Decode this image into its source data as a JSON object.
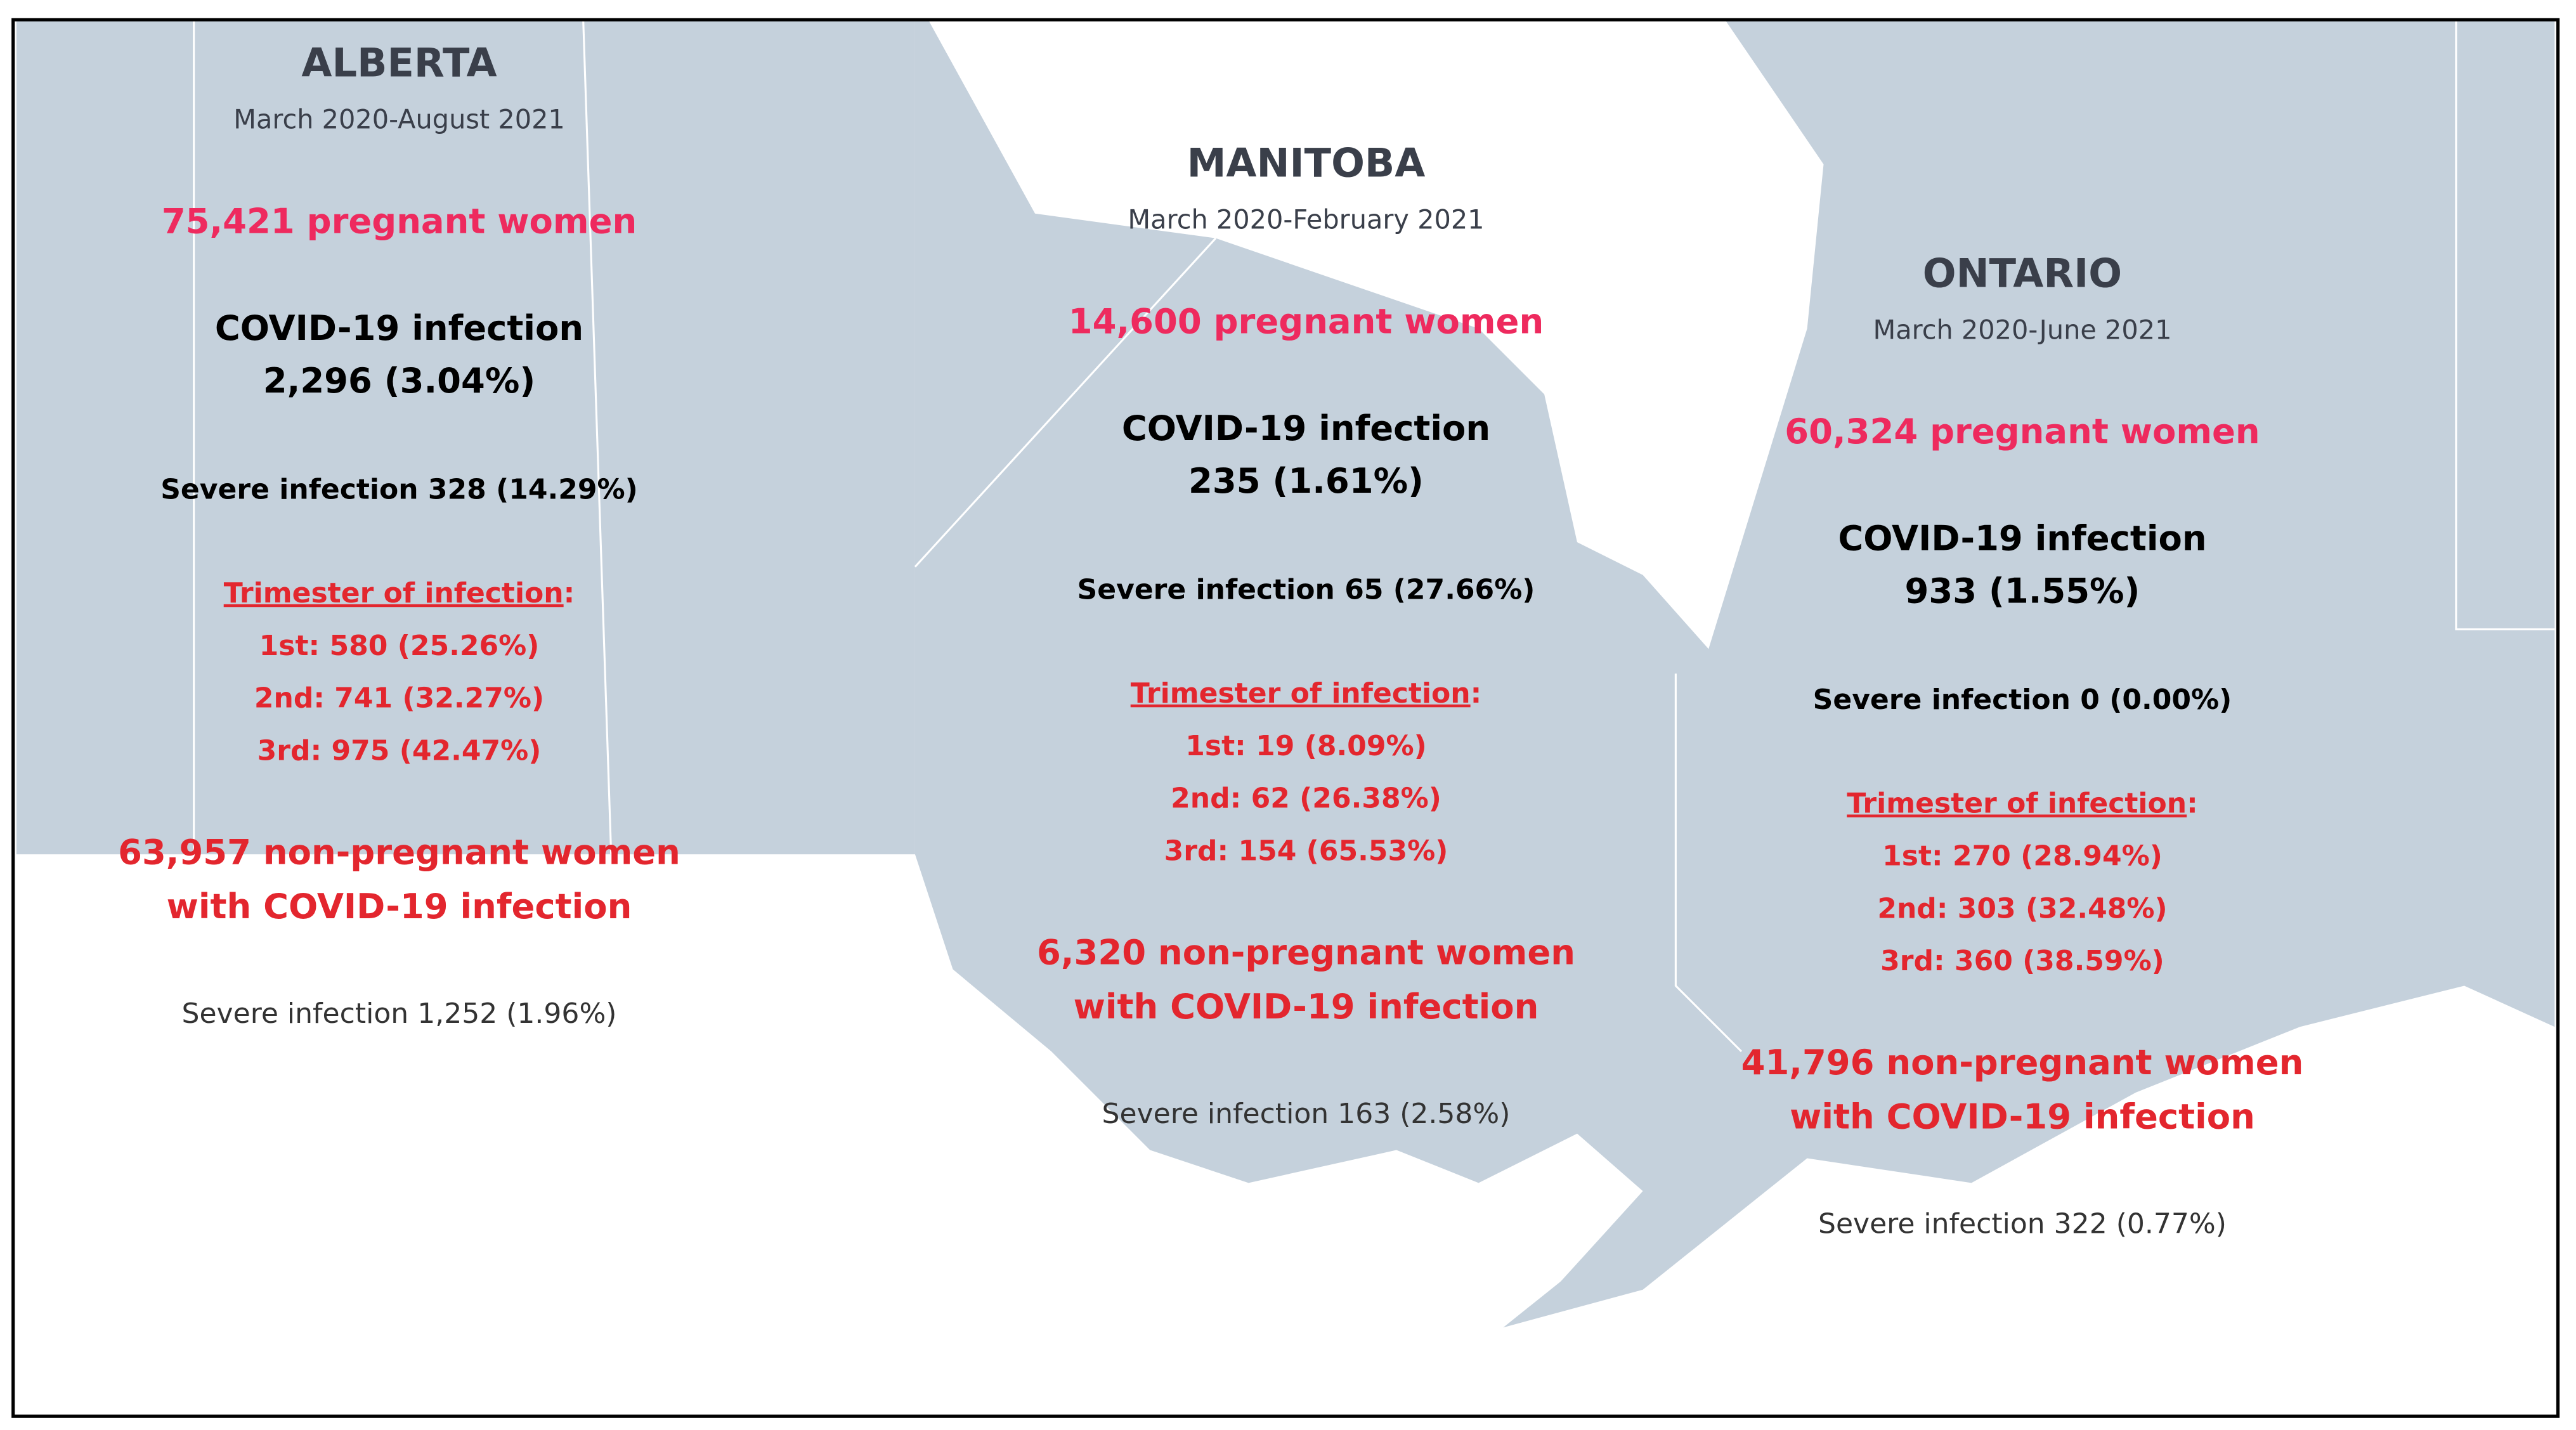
{
  "provinces": [
    {
      "name": "ALBERTA",
      "period": "March 2020-August 2021",
      "pregnant": "75,421 pregnant women",
      "covid_label": "COVID-19 infection",
      "covid_value": "2,296 (3.04%)",
      "severe": "Severe infection 328 (14.29%)",
      "trimester_heading": "Trimester of infection",
      "trimester_colon": ":",
      "trimesters": [
        "1st: 580 (25.26%)",
        "2nd: 741 (32.27%)",
        "3rd: 975 (42.47%)"
      ],
      "nonpregnant": [
        "63,957 non-pregnant women",
        "with COVID-19 infection"
      ],
      "nonpregnant_severe": "Severe infection 1,252 (1.96%)"
    },
    {
      "name": "MANITOBA",
      "period": "March 2020-February 2021",
      "pregnant": "14,600 pregnant women",
      "covid_label": "COVID-19 infection",
      "covid_value": "235 (1.61%)",
      "severe": "Severe infection 65 (27.66%)",
      "trimester_heading": "Trimester of infection",
      "trimester_colon": ":",
      "trimesters": [
        "1st: 19 (8.09%)",
        "2nd: 62 (26.38%)",
        "3rd: 154 (65.53%)"
      ],
      "nonpregnant": [
        "6,320 non-pregnant women",
        "with COVID-19 infection"
      ],
      "nonpregnant_severe": "Severe infection 163 (2.58%)"
    },
    {
      "name": "ONTARIO",
      "period": "March 2020-June 2021",
      "pregnant": "60,324 pregnant women",
      "covid_label": "COVID-19 infection",
      "covid_value": "933 (1.55%)",
      "severe": "Severe infection 0 (0.00%)",
      "trimester_heading": "Trimester of infection",
      "trimester_colon": ":",
      "trimesters": [
        "1st: 270 (28.94%)",
        "2nd: 303 (32.48%)",
        "3rd: 360 (38.59%)"
      ],
      "nonpregnant": [
        "41,796 non-pregnant women",
        "with COVID-19 infection"
      ],
      "nonpregnant_severe": "Severe infection 322 (0.77%)"
    }
  ]
}
